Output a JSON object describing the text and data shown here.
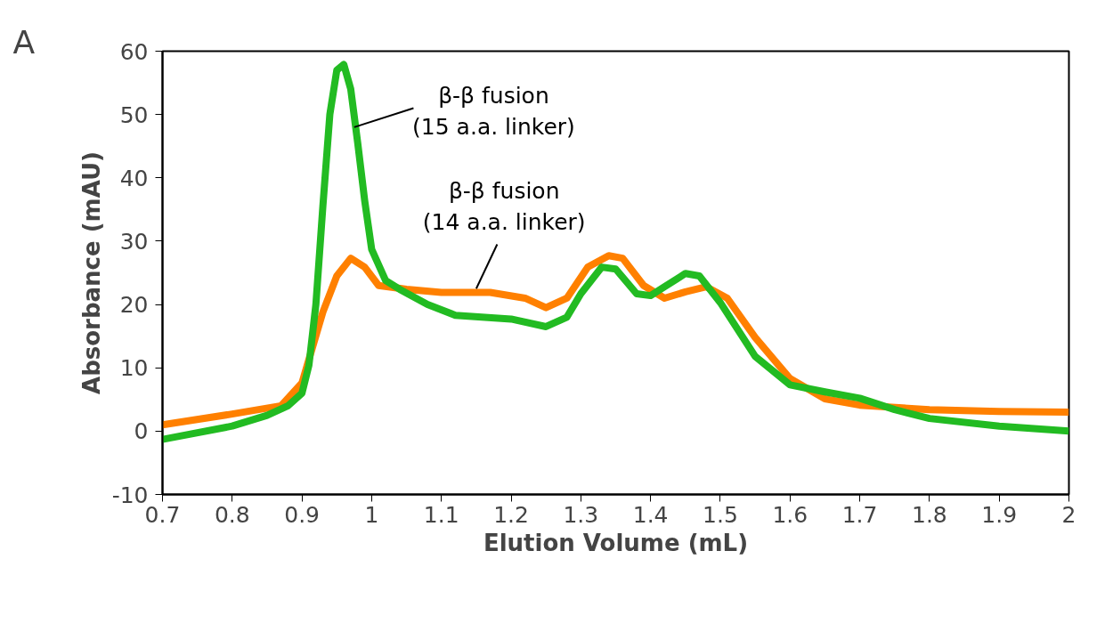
{
  "chart_data": {
    "type": "line",
    "xlabel": "Elution Volume (mL)",
    "ylabel": "Absorbance (mAU)",
    "annotations": [
      "A"
    ],
    "xlim": [
      0.7,
      2.0
    ],
    "ylim": [
      -10,
      60
    ],
    "xticks": [
      0.7,
      0.8,
      0.9,
      1,
      1.1,
      1.2,
      1.3,
      1.4,
      1.5,
      1.6,
      1.7,
      1.8,
      1.9,
      2
    ],
    "yticks": [
      -10,
      0,
      10,
      20,
      30,
      40,
      50,
      60
    ],
    "grid": false,
    "marker": "none",
    "line_style": "solid",
    "series": [
      {
        "name": "β-β fusion\n(14 a.a. linker)",
        "color": "#ff8000",
        "x": [
          0.7,
          0.8,
          0.87,
          0.9,
          0.93,
          0.95,
          0.97,
          0.99,
          1.01,
          1.05,
          1.1,
          1.17,
          1.22,
          1.25,
          1.28,
          1.31,
          1.34,
          1.36,
          1.39,
          1.42,
          1.45,
          1.48,
          1.51,
          1.55,
          1.6,
          1.65,
          1.7,
          1.8,
          1.9,
          2.0
        ],
        "values": [
          1,
          2.7,
          4,
          7.6,
          18.8,
          24.5,
          27.3,
          25.9,
          23,
          22.4,
          21.9,
          21.9,
          21,
          19.5,
          21,
          25.9,
          27.7,
          27.3,
          23,
          21,
          22,
          22.8,
          21,
          14.8,
          8.3,
          5.1,
          4.1,
          3.4,
          3.1,
          3.0
        ]
      },
      {
        "name": "β-β fusion\n(15 a.a. linker)",
        "color": "#22bb22",
        "x": [
          0.7,
          0.8,
          0.85,
          0.88,
          0.9,
          0.91,
          0.92,
          0.93,
          0.94,
          0.95,
          0.96,
          0.97,
          0.98,
          0.99,
          1.0,
          1.02,
          1.04,
          1.08,
          1.12,
          1.2,
          1.25,
          1.28,
          1.3,
          1.33,
          1.35,
          1.38,
          1.4,
          1.42,
          1.45,
          1.47,
          1.5,
          1.55,
          1.6,
          1.65,
          1.7,
          1.75,
          1.8,
          1.9,
          2.0
        ],
        "values": [
          -1.3,
          0.8,
          2.5,
          4,
          6,
          10.4,
          20,
          35.5,
          50,
          57,
          57.9,
          54,
          45.5,
          36.4,
          28.7,
          23.8,
          22.4,
          20,
          18.3,
          17.7,
          16.5,
          18,
          21.7,
          25.9,
          25.6,
          21.7,
          21.4,
          22.8,
          24.9,
          24.5,
          20.3,
          11.8,
          7.3,
          6.2,
          5.2,
          3.4,
          2,
          0.8,
          0
        ]
      }
    ]
  }
}
